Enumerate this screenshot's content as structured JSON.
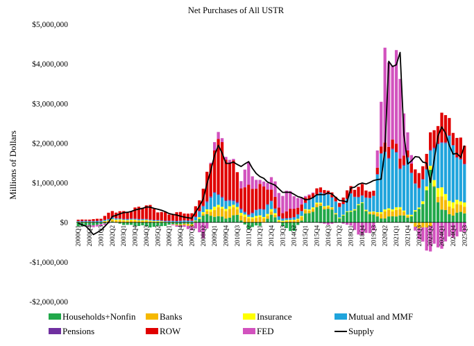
{
  "chart_data": {
    "type": "bar",
    "subtype": "stacked-bar-with-line",
    "title": "Net Purchases of All USTR",
    "ylabel": "Millions of Dollars",
    "xlabel": "",
    "ylim": [
      -2000000,
      5000000
    ],
    "y_ticks": [
      -2000000,
      -1000000,
      0,
      1000000,
      2000000,
      3000000,
      4000000,
      5000000
    ],
    "y_tick_labels": [
      "-$2,000,000",
      "-$1,000,000",
      "$0",
      "$1,000,000",
      "$2,000,000",
      "$3,000,000",
      "$4,000,000",
      "$5,000,000"
    ],
    "x_ticks": [
      {
        "label": "2000Q1",
        "index": 0
      },
      {
        "label": "2000Q4",
        "index": 3
      },
      {
        "label": "2001Q3",
        "index": 6
      },
      {
        "label": "2002Q2",
        "index": 9
      },
      {
        "label": "2003Q1",
        "index": 12
      },
      {
        "label": "2003Q4",
        "index": 15
      },
      {
        "label": "2004Q3",
        "index": 18
      },
      {
        "label": "2005Q2",
        "index": 21
      },
      {
        "label": "2006Q1",
        "index": 24
      },
      {
        "label": "2006Q4",
        "index": 27
      },
      {
        "label": "2007Q3",
        "index": 30
      },
      {
        "label": "2008Q2",
        "index": 33
      },
      {
        "label": "2009Q1",
        "index": 36
      },
      {
        "label": "2009Q4",
        "index": 39
      },
      {
        "label": "2010Q3",
        "index": 42
      },
      {
        "label": "2011Q2",
        "index": 45
      },
      {
        "label": "2012Q1",
        "index": 48
      },
      {
        "label": "2012Q4",
        "index": 51
      },
      {
        "label": "2013Q3",
        "index": 54
      },
      {
        "label": "2014Q2",
        "index": 57
      },
      {
        "label": "2015Q1",
        "index": 60
      },
      {
        "label": "2015Q4",
        "index": 63
      },
      {
        "label": "2016Q3",
        "index": 66
      },
      {
        "label": "2017Q2",
        "index": 69
      },
      {
        "label": "2018Q1",
        "index": 72
      },
      {
        "label": "2018Q4",
        "index": 75
      },
      {
        "label": "2019Q3",
        "index": 78
      },
      {
        "label": "2020Q2",
        "index": 81
      },
      {
        "label": "2021Q1",
        "index": 84
      },
      {
        "label": "2021Q4",
        "index": 87
      },
      {
        "label": "2022Q3",
        "index": 90
      },
      {
        "label": "2023Q2",
        "index": 93
      },
      {
        "label": "2024Q1",
        "index": 96
      },
      {
        "label": "2024Q4",
        "index": 99
      },
      {
        "label": "2025Q3",
        "index": 102
      }
    ],
    "n_periods": 103,
    "legend_position": "bottom",
    "stack_order": [
      "Households+Nonfin",
      "Banks",
      "Insurance",
      "Mutual and MMF",
      "Pensions",
      "ROW",
      "FED"
    ],
    "series": [
      {
        "name": "Households+Nonfin",
        "color": "#21a84a",
        "anchors": [
          [
            0,
            -80000
          ],
          [
            6,
            -60000
          ],
          [
            9,
            20000
          ],
          [
            12,
            -50000
          ],
          [
            18,
            -120000
          ],
          [
            24,
            -60000
          ],
          [
            30,
            -40000
          ],
          [
            33,
            150000
          ],
          [
            36,
            200000
          ],
          [
            39,
            120000
          ],
          [
            42,
            150000
          ],
          [
            45,
            -150000
          ],
          [
            48,
            -100000
          ],
          [
            51,
            200000
          ],
          [
            54,
            -100000
          ],
          [
            57,
            -250000
          ],
          [
            60,
            200000
          ],
          [
            63,
            300000
          ],
          [
            66,
            400000
          ],
          [
            69,
            150000
          ],
          [
            72,
            250000
          ],
          [
            75,
            400000
          ],
          [
            78,
            200000
          ],
          [
            81,
            100000
          ],
          [
            84,
            150000
          ],
          [
            87,
            150000
          ],
          [
            90,
            350000
          ],
          [
            93,
            1000000
          ],
          [
            96,
            300000
          ],
          [
            99,
            250000
          ],
          [
            102,
            250000
          ]
        ]
      },
      {
        "name": "Banks",
        "color": "#f5b800",
        "anchors": [
          [
            0,
            0
          ],
          [
            6,
            0
          ],
          [
            9,
            50000
          ],
          [
            12,
            50000
          ],
          [
            18,
            30000
          ],
          [
            24,
            0
          ],
          [
            30,
            -50000
          ],
          [
            33,
            50000
          ],
          [
            36,
            150000
          ],
          [
            39,
            200000
          ],
          [
            42,
            200000
          ],
          [
            45,
            100000
          ],
          [
            48,
            100000
          ],
          [
            51,
            80000
          ],
          [
            54,
            20000
          ],
          [
            57,
            50000
          ],
          [
            60,
            80000
          ],
          [
            63,
            80000
          ],
          [
            66,
            50000
          ],
          [
            69,
            0
          ],
          [
            72,
            0
          ],
          [
            75,
            0
          ],
          [
            78,
            50000
          ],
          [
            81,
            150000
          ],
          [
            84,
            200000
          ],
          [
            87,
            50000
          ],
          [
            90,
            -150000
          ],
          [
            93,
            -100000
          ],
          [
            96,
            300000
          ],
          [
            99,
            150000
          ],
          [
            102,
            200000
          ]
        ]
      },
      {
        "name": "Insurance",
        "color": "#ffff00",
        "anchors": [
          [
            0,
            10000
          ],
          [
            6,
            10000
          ],
          [
            9,
            20000
          ],
          [
            12,
            20000
          ],
          [
            18,
            20000
          ],
          [
            24,
            10000
          ],
          [
            30,
            10000
          ],
          [
            33,
            30000
          ],
          [
            36,
            80000
          ],
          [
            39,
            60000
          ],
          [
            42,
            60000
          ],
          [
            45,
            40000
          ],
          [
            48,
            50000
          ],
          [
            51,
            50000
          ],
          [
            54,
            20000
          ],
          [
            57,
            20000
          ],
          [
            60,
            30000
          ],
          [
            63,
            30000
          ],
          [
            66,
            20000
          ],
          [
            69,
            20000
          ],
          [
            72,
            20000
          ],
          [
            75,
            20000
          ],
          [
            78,
            20000
          ],
          [
            81,
            50000
          ],
          [
            84,
            50000
          ],
          [
            87,
            30000
          ],
          [
            90,
            50000
          ],
          [
            93,
            100000
          ],
          [
            96,
            200000
          ],
          [
            99,
            150000
          ],
          [
            102,
            100000
          ]
        ]
      },
      {
        "name": "Mutual and MMF",
        "color": "#1fa4dc",
        "anchors": [
          [
            0,
            20000
          ],
          [
            6,
            20000
          ],
          [
            9,
            30000
          ],
          [
            12,
            20000
          ],
          [
            18,
            20000
          ],
          [
            24,
            20000
          ],
          [
            30,
            30000
          ],
          [
            33,
            200000
          ],
          [
            36,
            300000
          ],
          [
            39,
            150000
          ],
          [
            42,
            100000
          ],
          [
            45,
            50000
          ],
          [
            48,
            150000
          ],
          [
            51,
            200000
          ],
          [
            54,
            50000
          ],
          [
            57,
            50000
          ],
          [
            60,
            150000
          ],
          [
            63,
            300000
          ],
          [
            66,
            300000
          ],
          [
            69,
            200000
          ],
          [
            72,
            400000
          ],
          [
            75,
            200000
          ],
          [
            78,
            400000
          ],
          [
            81,
            1500000
          ],
          [
            84,
            1500000
          ],
          [
            87,
            1200000
          ],
          [
            90,
            400000
          ],
          [
            93,
            500000
          ],
          [
            96,
            1500000
          ],
          [
            99,
            1200000
          ],
          [
            102,
            800000
          ]
        ]
      },
      {
        "name": "Pensions",
        "color": "#7030a0",
        "anchors": [
          [
            0,
            10000
          ],
          [
            6,
            10000
          ],
          [
            9,
            10000
          ],
          [
            12,
            10000
          ],
          [
            18,
            10000
          ],
          [
            24,
            10000
          ],
          [
            30,
            10000
          ],
          [
            33,
            20000
          ],
          [
            36,
            30000
          ],
          [
            39,
            30000
          ],
          [
            42,
            30000
          ],
          [
            45,
            20000
          ],
          [
            48,
            20000
          ],
          [
            51,
            20000
          ],
          [
            54,
            10000
          ],
          [
            57,
            10000
          ],
          [
            60,
            10000
          ],
          [
            63,
            10000
          ],
          [
            66,
            10000
          ],
          [
            69,
            10000
          ],
          [
            72,
            10000
          ],
          [
            75,
            10000
          ],
          [
            78,
            10000
          ],
          [
            81,
            20000
          ],
          [
            84,
            20000
          ],
          [
            87,
            20000
          ],
          [
            90,
            20000
          ],
          [
            93,
            20000
          ],
          [
            96,
            20000
          ],
          [
            99,
            20000
          ],
          [
            102,
            20000
          ]
        ]
      },
      {
        "name": "ROW",
        "color": "#e00000",
        "anchors": [
          [
            0,
            30000
          ],
          [
            6,
            50000
          ],
          [
            9,
            150000
          ],
          [
            12,
            200000
          ],
          [
            18,
            300000
          ],
          [
            24,
            200000
          ],
          [
            30,
            150000
          ],
          [
            33,
            500000
          ],
          [
            36,
            1200000
          ],
          [
            39,
            1000000
          ],
          [
            42,
            800000
          ],
          [
            45,
            700000
          ],
          [
            48,
            500000
          ],
          [
            51,
            300000
          ],
          [
            54,
            200000
          ],
          [
            57,
            200000
          ],
          [
            60,
            100000
          ],
          [
            63,
            150000
          ],
          [
            66,
            100000
          ],
          [
            69,
            100000
          ],
          [
            72,
            200000
          ],
          [
            75,
            300000
          ],
          [
            78,
            100000
          ],
          [
            81,
            200000
          ],
          [
            84,
            300000
          ],
          [
            87,
            200000
          ],
          [
            90,
            300000
          ],
          [
            93,
            400000
          ],
          [
            96,
            800000
          ],
          [
            99,
            300000
          ],
          [
            102,
            500000
          ]
        ]
      },
      {
        "name": "FED",
        "color": "#d252be",
        "anchors": [
          [
            0,
            0
          ],
          [
            6,
            -60000
          ],
          [
            9,
            0
          ],
          [
            12,
            0
          ],
          [
            18,
            0
          ],
          [
            24,
            0
          ],
          [
            30,
            -100000
          ],
          [
            33,
            -300000
          ],
          [
            36,
            200000
          ],
          [
            39,
            100000
          ],
          [
            42,
            0
          ],
          [
            45,
            500000
          ],
          [
            48,
            100000
          ],
          [
            51,
            300000
          ],
          [
            54,
            400000
          ],
          [
            57,
            400000
          ],
          [
            60,
            50000
          ],
          [
            63,
            0
          ],
          [
            66,
            -50000
          ],
          [
            69,
            0
          ],
          [
            72,
            -100000
          ],
          [
            75,
            -300000
          ],
          [
            78,
            -200000
          ],
          [
            81,
            2300000
          ],
          [
            84,
            2000000
          ],
          [
            87,
            500000
          ],
          [
            90,
            -400000
          ],
          [
            93,
            -600000
          ],
          [
            96,
            -500000
          ],
          [
            99,
            -400000
          ],
          [
            102,
            -300000
          ]
        ]
      }
    ],
    "supply_line": {
      "name": "Supply",
      "color": "#000000",
      "anchors": [
        [
          0,
          -20000
        ],
        [
          2,
          -100000
        ],
        [
          4,
          -300000
        ],
        [
          6,
          -200000
        ],
        [
          8,
          0
        ],
        [
          9,
          150000
        ],
        [
          12,
          250000
        ],
        [
          15,
          300000
        ],
        [
          18,
          380000
        ],
        [
          21,
          350000
        ],
        [
          24,
          230000
        ],
        [
          27,
          150000
        ],
        [
          30,
          100000
        ],
        [
          33,
          600000
        ],
        [
          36,
          1700000
        ],
        [
          37,
          1850000
        ],
        [
          39,
          1500000
        ],
        [
          42,
          1500000
        ],
        [
          45,
          1500000
        ],
        [
          48,
          1100000
        ],
        [
          51,
          1000000
        ],
        [
          54,
          800000
        ],
        [
          57,
          700000
        ],
        [
          60,
          550000
        ],
        [
          63,
          700000
        ],
        [
          66,
          750000
        ],
        [
          69,
          550000
        ],
        [
          71,
          500000
        ],
        [
          72,
          900000
        ],
        [
          75,
          1000000
        ],
        [
          78,
          1000000
        ],
        [
          80,
          1100000
        ],
        [
          81,
          1800000
        ],
        [
          82,
          4000000
        ],
        [
          84,
          4200000
        ],
        [
          85,
          4300000
        ],
        [
          86,
          2200000
        ],
        [
          87,
          1500000
        ],
        [
          90,
          1600000
        ],
        [
          92,
          1500000
        ],
        [
          93,
          1000000
        ],
        [
          95,
          2300000
        ],
        [
          96,
          2400000
        ],
        [
          97,
          2200000
        ],
        [
          99,
          1700000
        ],
        [
          101,
          1600000
        ],
        [
          102,
          2000000
        ]
      ]
    }
  },
  "legend": [
    {
      "label": "Households+Nonfin",
      "color": "#21a84a",
      "kind": "swatch"
    },
    {
      "label": "Banks",
      "color": "#f5b800",
      "kind": "swatch"
    },
    {
      "label": "Insurance",
      "color": "#ffff00",
      "kind": "swatch"
    },
    {
      "label": "Mutual and MMF",
      "color": "#1fa4dc",
      "kind": "swatch"
    },
    {
      "label": "Pensions",
      "color": "#7030a0",
      "kind": "swatch"
    },
    {
      "label": "ROW",
      "color": "#e00000",
      "kind": "swatch"
    },
    {
      "label": "FED",
      "color": "#d252be",
      "kind": "swatch"
    },
    {
      "label": "Supply",
      "color": "#000000",
      "kind": "line"
    }
  ]
}
